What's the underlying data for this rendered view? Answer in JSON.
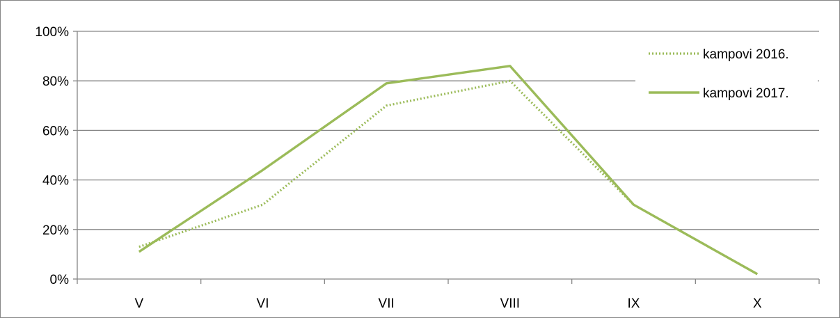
{
  "chart_data": {
    "type": "line",
    "categories": [
      "V",
      "VI",
      "VII",
      "VIII",
      "IX",
      "X"
    ],
    "series": [
      {
        "name": "kampovi 2016.",
        "values": [
          0.13,
          0.3,
          0.7,
          0.8,
          0.3,
          0.02
        ],
        "style": "dotted",
        "color": "#9bbb59"
      },
      {
        "name": "kampovi 2017.",
        "values": [
          0.11,
          0.44,
          0.79,
          0.86,
          0.3,
          0.02
        ],
        "style": "solid",
        "color": "#9bbb59"
      }
    ],
    "yticks": [
      "0%",
      "20%",
      "40%",
      "60%",
      "80%",
      "100%"
    ],
    "ylim": [
      0,
      1
    ],
    "grid": true,
    "legend_position": "top-right",
    "gridline_color": "#868686"
  }
}
